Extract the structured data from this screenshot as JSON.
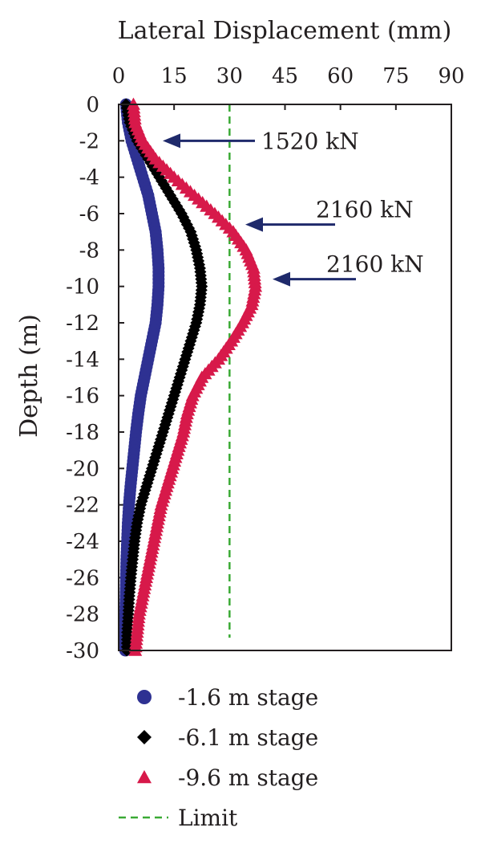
{
  "chart_data": {
    "type": "scatter",
    "title": "",
    "xlabel": "Lateral Displacement (mm)",
    "ylabel": "Depth (m)",
    "x_axis_position": "top",
    "xlim": [
      0,
      90
    ],
    "ylim": [
      -30,
      0
    ],
    "x_ticks": [
      0,
      15,
      30,
      45,
      60,
      75,
      90
    ],
    "y_ticks": [
      0,
      -2,
      -4,
      -6,
      -8,
      -10,
      -12,
      -14,
      -16,
      -18,
      -20,
      -22,
      -24,
      -26,
      -28,
      -30
    ],
    "x_tick_labels": [
      "0",
      "15",
      "30",
      "45",
      "60",
      "75",
      "90"
    ],
    "y_tick_labels": [
      "0",
      "-2",
      "-4",
      "-6",
      "-8",
      "-10",
      "-12",
      "-14",
      "-16",
      "-18",
      "-20",
      "-22",
      "-24",
      "-26",
      "-28",
      "-30"
    ],
    "grid": false,
    "legend_position": "bottom",
    "series": [
      {
        "name": "-1.6 m stage",
        "marker": "circle",
        "color": "#2e3192",
        "points": [
          [
            2,
            0
          ],
          [
            2.5,
            -1
          ],
          [
            3.5,
            -2
          ],
          [
            5,
            -3
          ],
          [
            6.5,
            -4
          ],
          [
            8,
            -5
          ],
          [
            9,
            -6
          ],
          [
            10,
            -7
          ],
          [
            10.5,
            -8
          ],
          [
            10.8,
            -9
          ],
          [
            10.8,
            -10
          ],
          [
            10.5,
            -11
          ],
          [
            10,
            -12
          ],
          [
            9,
            -13
          ],
          [
            8,
            -14
          ],
          [
            7,
            -15
          ],
          [
            6,
            -16
          ],
          [
            5.3,
            -17
          ],
          [
            4.7,
            -18
          ],
          [
            4.2,
            -19
          ],
          [
            3.7,
            -20
          ],
          [
            3.2,
            -21
          ],
          [
            2.8,
            -22
          ],
          [
            2.5,
            -23
          ],
          [
            2.3,
            -24
          ],
          [
            2.1,
            -25
          ],
          [
            2,
            -26
          ],
          [
            1.9,
            -27
          ],
          [
            1.8,
            -28
          ],
          [
            1.8,
            -29
          ],
          [
            1.8,
            -30
          ]
        ]
      },
      {
        "name": "-6.1 m stage",
        "marker": "diamond",
        "color": "#000000",
        "points": [
          [
            2,
            0
          ],
          [
            3,
            -1
          ],
          [
            5,
            -2
          ],
          [
            8,
            -3
          ],
          [
            11,
            -4
          ],
          [
            14,
            -5
          ],
          [
            17,
            -6
          ],
          [
            19.5,
            -7
          ],
          [
            21,
            -8
          ],
          [
            22,
            -9
          ],
          [
            22.5,
            -10
          ],
          [
            22,
            -11
          ],
          [
            21,
            -12
          ],
          [
            19.5,
            -13
          ],
          [
            18,
            -14
          ],
          [
            16.5,
            -15
          ],
          [
            15,
            -16
          ],
          [
            13.5,
            -17
          ],
          [
            12,
            -18
          ],
          [
            10.5,
            -19
          ],
          [
            9,
            -20
          ],
          [
            7.5,
            -21
          ],
          [
            6,
            -22
          ],
          [
            5,
            -23
          ],
          [
            4.3,
            -24
          ],
          [
            3.8,
            -25
          ],
          [
            3.3,
            -26
          ],
          [
            2.9,
            -27
          ],
          [
            2.6,
            -28
          ],
          [
            2.3,
            -29
          ],
          [
            2.2,
            -30
          ]
        ]
      },
      {
        "name": "-9.6 m stage",
        "marker": "triangle",
        "color": "#d7194a",
        "points": [
          [
            4,
            0
          ],
          [
            4.5,
            -1
          ],
          [
            6.5,
            -2
          ],
          [
            10,
            -3
          ],
          [
            15,
            -4
          ],
          [
            20.5,
            -5
          ],
          [
            26,
            -6
          ],
          [
            31,
            -7
          ],
          [
            34.5,
            -8
          ],
          [
            36.5,
            -9
          ],
          [
            37,
            -10
          ],
          [
            36,
            -11
          ],
          [
            33.5,
            -12
          ],
          [
            30.5,
            -13
          ],
          [
            27,
            -14
          ],
          [
            22.5,
            -15
          ],
          [
            20,
            -16
          ],
          [
            18.5,
            -17
          ],
          [
            17.5,
            -18
          ],
          [
            16,
            -19
          ],
          [
            14.5,
            -20
          ],
          [
            13,
            -21
          ],
          [
            11.5,
            -22
          ],
          [
            10.5,
            -23
          ],
          [
            9.5,
            -24
          ],
          [
            8.5,
            -25
          ],
          [
            7.5,
            -26
          ],
          [
            6.5,
            -27
          ],
          [
            5.5,
            -28
          ],
          [
            5,
            -29
          ],
          [
            4.5,
            -30
          ]
        ]
      }
    ],
    "limit_line": {
      "name": "Limit",
      "x": 30,
      "style": "dashed",
      "color": "#3aaa35"
    },
    "annotations": [
      {
        "text": "1520 kN",
        "arrow_depth": -2
      },
      {
        "text": "2160 kN",
        "arrow_depth": -6.6
      },
      {
        "text": "2160 kN",
        "arrow_depth": -9.6
      }
    ],
    "arrow_color": "#1f2a6b",
    "axis_color": "#231f20"
  }
}
